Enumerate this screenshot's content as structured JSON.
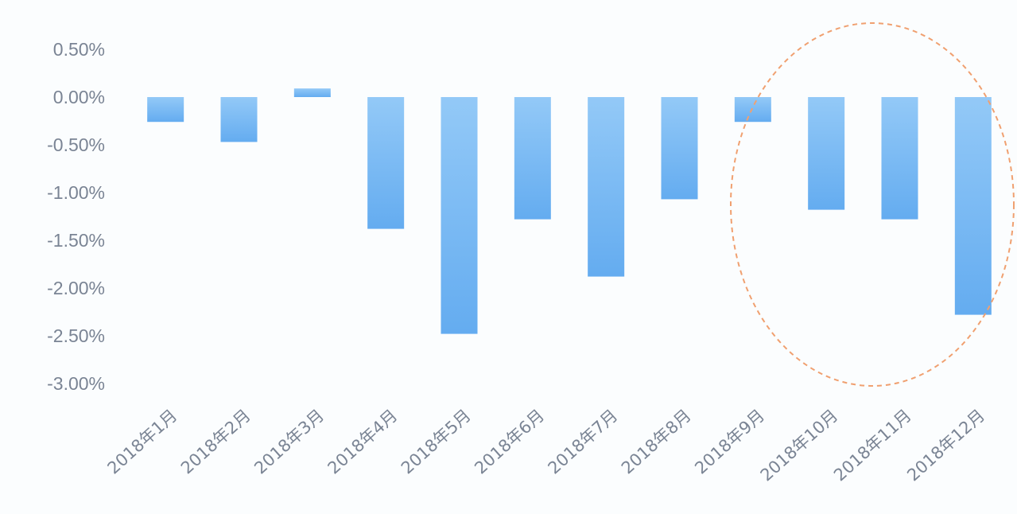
{
  "chart_data": {
    "type": "bar",
    "title": "",
    "xlabel": "",
    "ylabel": "",
    "categories": [
      "2018年1月",
      "2018年2月",
      "2018年3月",
      "2018年4月",
      "2018年5月",
      "2018年6月",
      "2018年7月",
      "2018年8月",
      "2018年9月",
      "2018年10月",
      "2018年11月",
      "2018年12月"
    ],
    "values": [
      -0.26,
      -0.47,
      0.09,
      -1.38,
      -2.48,
      -1.28,
      -1.88,
      -1.07,
      -0.26,
      -1.18,
      -1.28,
      -2.28
    ],
    "ylim": [
      -3.0,
      0.5
    ],
    "yticks": [
      "0.50%",
      "0.00%",
      "-0.50%",
      "-1.00%",
      "-1.50%",
      "-2.00%",
      "-2.50%",
      "-3.00%"
    ],
    "ytick_values": [
      0.5,
      0.0,
      -0.5,
      -1.0,
      -1.5,
      -2.0,
      -2.5,
      -3.0
    ],
    "grid": false,
    "legend": "none",
    "bar_color_top": "#93c9f7",
    "bar_color_bottom": "#64acf0",
    "annotation": {
      "shape": "dashed-ellipse",
      "highlights": [
        "2018年9月",
        "2018年10月",
        "2018年11月",
        "2018年12月"
      ],
      "color": "#f0a070"
    }
  }
}
